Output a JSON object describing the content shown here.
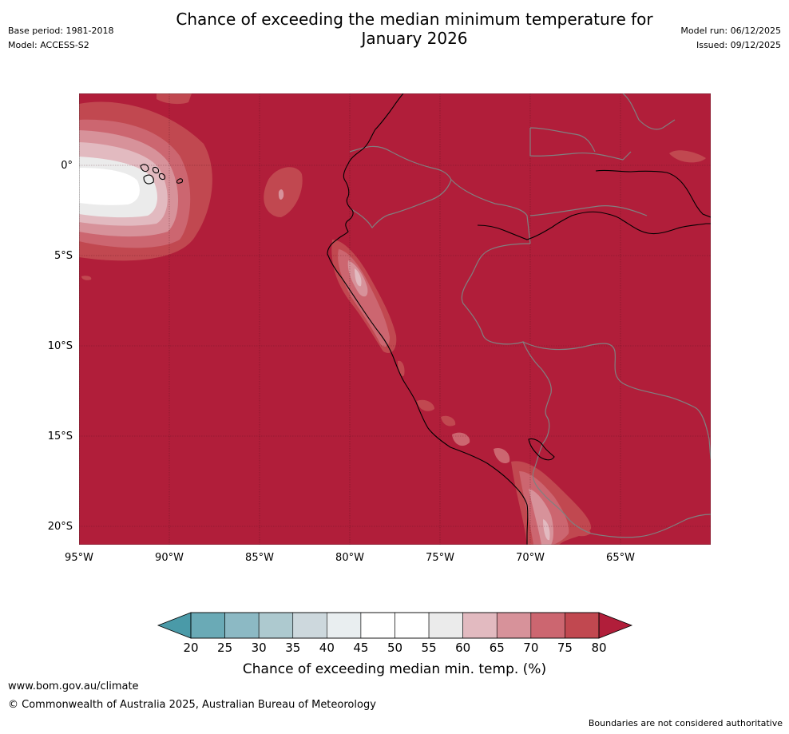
{
  "header": {
    "title_line1": "Chance of exceeding the median minimum temperature for",
    "title_line2": "January 2026",
    "base_period": "Base period: 1981-2018",
    "model": "Model: ACCESS-S2",
    "model_run": "Model run: 06/12/2025",
    "issued": "Issued: 09/12/2025"
  },
  "map": {
    "region": "Western South America and eastern Pacific",
    "lon_labels": [
      "95°W",
      "90°W",
      "85°W",
      "80°W",
      "75°W",
      "70°W",
      "65°W"
    ],
    "lat_labels": [
      "0°",
      "5°S",
      "10°S",
      "15°S",
      "20°S"
    ],
    "lon_range": [
      -95,
      -60.2
    ],
    "lat_range": [
      -21.1,
      3.9
    ],
    "dominant_category": "80+",
    "colors": {
      "c80": "#b11e3a",
      "c75": "#c14850",
      "c70": "#cc6670",
      "c65": "#d7929a",
      "c60": "#e2bac0",
      "c55": "#ebebeb",
      "c50": "#ffffff",
      "coast": "#000000",
      "border": "#808080"
    }
  },
  "colorbar": {
    "ticks": [
      "20",
      "25",
      "30",
      "35",
      "40",
      "45",
      "50",
      "55",
      "60",
      "65",
      "70",
      "75",
      "80"
    ],
    "label": "Chance of exceeding median min. temp. (%)",
    "colors": [
      "#6aaab6",
      "#8cb9c4",
      "#adc9cf",
      "#cdd8dd",
      "#e9eef0",
      "#ffffff",
      "#ffffff",
      "#ebebeb",
      "#e2bac0",
      "#d7929a",
      "#cc6670",
      "#c14850"
    ],
    "low_color": "#4a9aa8",
    "high_color": "#b11e3a"
  },
  "footer": {
    "url": "www.bom.gov.au/climate",
    "copyright": "© Commonwealth of Australia 2025, Australian Bureau of Meteorology",
    "note": "Boundaries are not considered authoritative"
  }
}
